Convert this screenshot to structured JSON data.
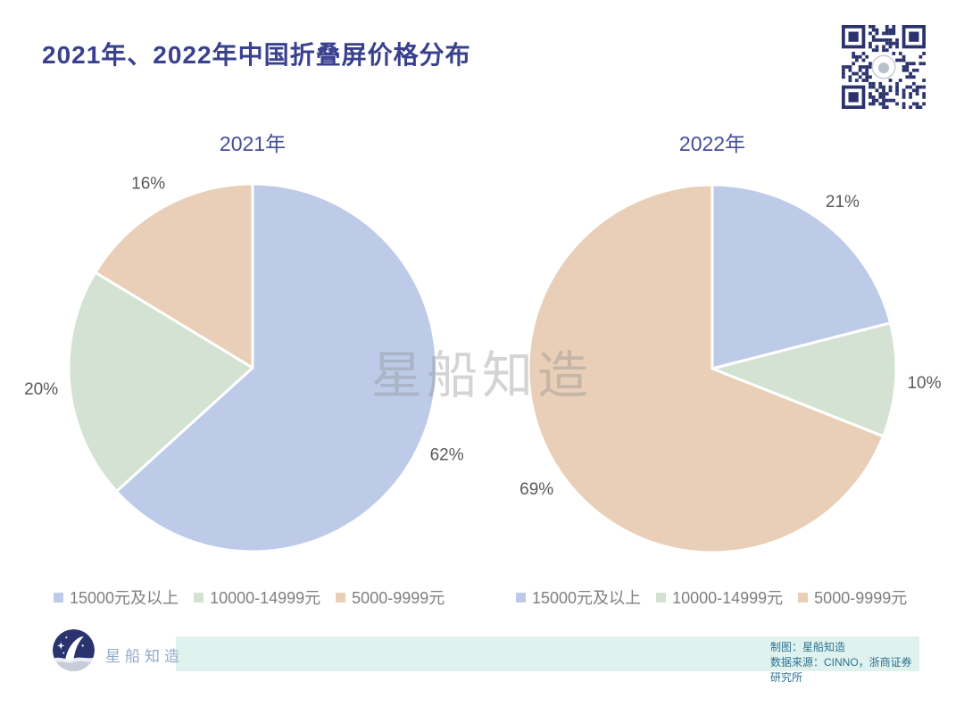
{
  "page": {
    "title": "2021年、2022年中国折叠屏价格分布",
    "watermark": "星船知造"
  },
  "colors": {
    "title_navy": "#39418e",
    "subtitle_navy": "#444e96",
    "slice_blue": "#bdcbe9",
    "slice_green": "#d3e2d2",
    "slice_tan": "#e9cfb7",
    "percent_label_gray": "#595959",
    "legend_text_gray": "#7f7f7f",
    "footer_bar_teal": "#e0f2ee",
    "footer_text_teal": "#2e7193",
    "logo_navy": "#2b336e",
    "logo_text_blue": "#92abc9",
    "qr_navy": "#2b336e"
  },
  "chart_data": [
    {
      "type": "pie",
      "title": "2021年",
      "labels": [
        "15000元及以上",
        "10000-14999元",
        "5000-9999元"
      ],
      "values": [
        62,
        20,
        16
      ],
      "annotations": [
        "62%",
        "20%",
        "16%"
      ],
      "colors": [
        "#bdcbe9",
        "#d3e2d2",
        "#e9cfb7"
      ],
      "start_angle_deg": 0,
      "direction": "clockwise",
      "legend_position": "bottom"
    },
    {
      "type": "pie",
      "title": "2022年",
      "labels": [
        "15000元及以上",
        "10000-14999元",
        "5000-9999元"
      ],
      "values": [
        21,
        10,
        69
      ],
      "annotations": [
        "21%",
        "10%",
        "69%"
      ],
      "colors": [
        "#bdcbe9",
        "#d3e2d2",
        "#e9cfb7"
      ],
      "start_angle_deg": 0,
      "direction": "clockwise",
      "legend_position": "bottom"
    }
  ],
  "footer": {
    "logo_text": "星船知造",
    "credit_line1": "制图：星船知造",
    "credit_line2": "数据来源：CINNO，浙商证券研究所"
  }
}
